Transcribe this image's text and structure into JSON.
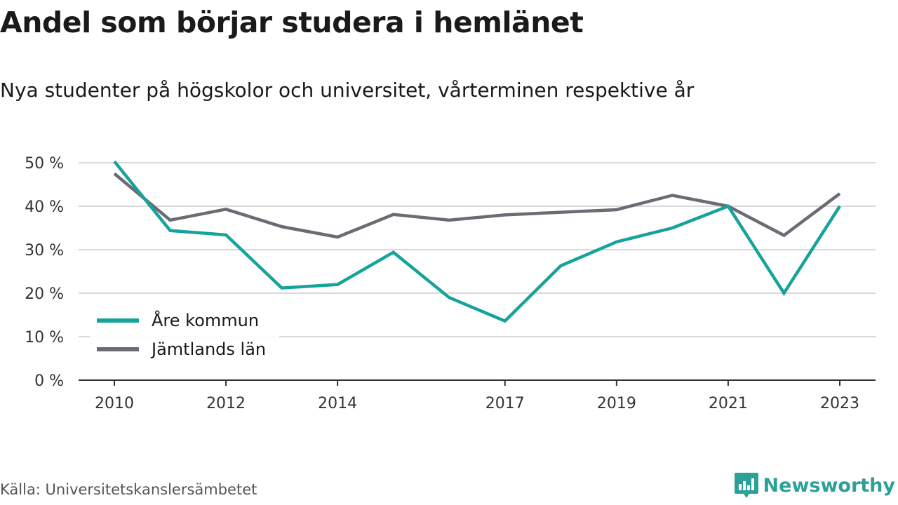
{
  "title": "Andel som börjar studera i hemlänet",
  "subtitle": "Nya studenter på högskolor och universitet, vårterminen respektive år",
  "source": "Källa: Universitetskanslersämbetet",
  "brand": "Newsworthy",
  "colors": {
    "series1": "#16a39a",
    "series2": "#6c6b73",
    "grid": "#d9d9d9",
    "axis": "#333333",
    "brand": "#2ba198"
  },
  "chart_data": {
    "type": "line",
    "x": [
      2010,
      2011,
      2012,
      2013,
      2014,
      2015,
      2016,
      2017,
      2018,
      2019,
      2020,
      2021,
      2022,
      2023
    ],
    "x_tick_labels": [
      "2010",
      "2012",
      "2014",
      "2017",
      "2019",
      "2021",
      "2023"
    ],
    "y_tick_labels": [
      "0 %",
      "10 %",
      "20 %",
      "30 %",
      "40 %",
      "50 %"
    ],
    "ylim": [
      0,
      50
    ],
    "grid": true,
    "legend_position": "bottom-left",
    "series": [
      {
        "name": "Åre kommun",
        "values": [
          50.3,
          34.4,
          33.4,
          21.2,
          22.0,
          29.4,
          19.0,
          13.6,
          26.3,
          31.8,
          35.0,
          40.0,
          20.0,
          40.0
        ]
      },
      {
        "name": "Jämtlands län",
        "values": [
          47.5,
          36.8,
          39.3,
          35.3,
          32.9,
          38.1,
          36.8,
          38.0,
          38.6,
          39.2,
          42.5,
          40.0,
          33.3,
          42.9
        ]
      }
    ]
  }
}
